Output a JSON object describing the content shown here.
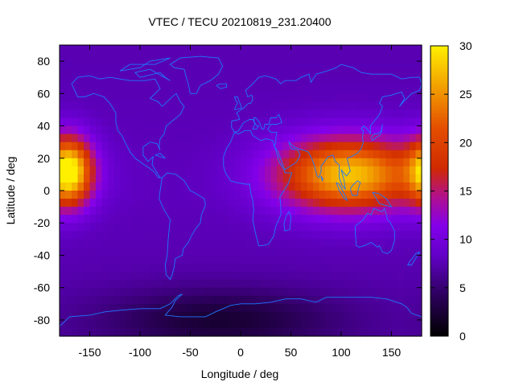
{
  "chart_data": {
    "type": "heatmap",
    "title": "VTEC / TECU 20210819_231.20400",
    "xlabel": "Longitude / deg",
    "ylabel": "Latitude / deg",
    "xlim": [
      -180,
      180
    ],
    "ylim": [
      -90,
      90
    ],
    "x_ticks": [
      -150,
      -100,
      -50,
      0,
      50,
      100,
      150
    ],
    "y_ticks": [
      -80,
      -60,
      -40,
      -20,
      0,
      20,
      40,
      60,
      80
    ],
    "colorbar": {
      "range": [
        0,
        30
      ],
      "ticks": [
        0,
        5,
        10,
        15,
        20,
        25,
        30
      ],
      "palette": "black-purple-red-orange-yellow"
    },
    "overlay": "world coastlines",
    "field_units": "TECU",
    "background_value": 8,
    "features": [
      {
        "name": "pacific-equatorial-anomaly",
        "center_lon": -170,
        "center_lat": 12,
        "peak_value": 20,
        "lon_halfwidth": 22,
        "lat_halfwidth": 20
      },
      {
        "name": "asian-equatorial-anomaly",
        "center_lon": 108,
        "center_lat": 10,
        "peak_value": 20,
        "lon_halfwidth": 70,
        "lat_halfwidth": 22
      },
      {
        "name": "southern-low",
        "center_lon": -20,
        "center_lat": -80,
        "peak_value": -5,
        "lon_halfwidth": 120,
        "lat_halfwidth": 20
      }
    ]
  }
}
